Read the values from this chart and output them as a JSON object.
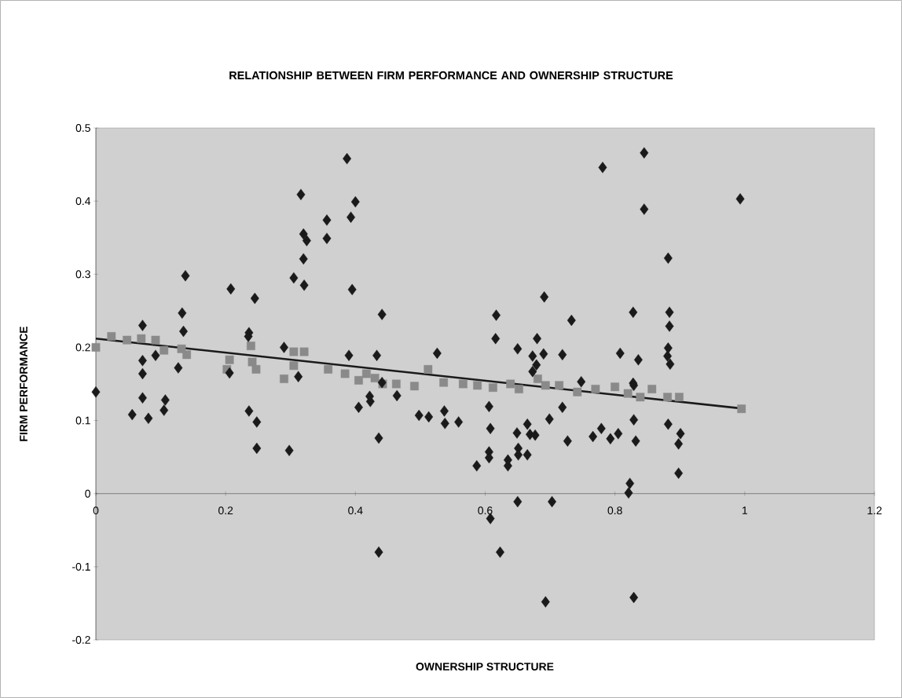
{
  "chart_data": {
    "type": "scatter",
    "title": "RELATIONSHIP BETWEEN FIRM PERFORMANCE AND OWNERSHIP STRUCTURE",
    "xlabel": "OWNERSHIP STRUCTURE",
    "ylabel": "FIRM PERFORMANCE",
    "xlim": [
      0,
      1.2
    ],
    "ylim": [
      -0.2,
      0.5
    ],
    "xticks": [
      0,
      0.2,
      0.4,
      0.6,
      0.8,
      1,
      1.2
    ],
    "yticks": [
      -0.2,
      -0.1,
      0,
      0.1,
      0.2,
      0.3,
      0.4,
      0.5
    ],
    "series": [
      {
        "marker": "square",
        "color": "#8a8a8a",
        "x": [
          0.0,
          0.024,
          0.048,
          0.07,
          0.092,
          0.105,
          0.132,
          0.14,
          0.206,
          0.202,
          0.239,
          0.241,
          0.247,
          0.29,
          0.305,
          0.321,
          0.305,
          0.358,
          0.384,
          0.405,
          0.417,
          0.43,
          0.442,
          0.463,
          0.491,
          0.512,
          0.536,
          0.566,
          0.588,
          0.612,
          0.639,
          0.652,
          0.681,
          0.693,
          0.714,
          0.742,
          0.77,
          0.8,
          0.82,
          0.839,
          0.857,
          0.881,
          0.899,
          0.995
        ],
        "values": [
          0.2,
          0.215,
          0.21,
          0.212,
          0.21,
          0.196,
          0.198,
          0.19,
          0.183,
          0.17,
          0.202,
          0.18,
          0.17,
          0.157,
          0.175,
          0.194,
          0.194,
          0.17,
          0.164,
          0.155,
          0.164,
          0.158,
          0.15,
          0.15,
          0.147,
          0.17,
          0.152,
          0.15,
          0.148,
          0.145,
          0.15,
          0.143,
          0.157,
          0.148,
          0.148,
          0.139,
          0.143,
          0.146,
          0.137,
          0.132,
          0.143,
          0.132,
          0.132,
          0.116
        ]
      },
      {
        "marker": "diamond",
        "color": "#1a1a1a",
        "x": [
          0.0,
          0.056,
          0.072,
          0.081,
          0.107,
          0.105,
          0.387,
          0.316,
          0.4,
          0.356,
          0.393,
          0.32,
          0.325,
          0.356,
          0.32,
          0.138,
          0.208,
          0.245,
          0.305,
          0.321,
          0.395,
          0.133,
          0.135,
          0.072,
          0.236,
          0.235,
          0.29,
          0.39,
          0.072,
          0.092,
          0.127,
          0.072,
          0.206,
          0.312,
          0.781,
          0.691,
          0.441,
          0.617,
          0.733,
          0.616,
          0.68,
          0.65,
          0.69,
          0.719,
          0.808,
          0.673,
          0.433,
          0.526,
          0.679,
          0.673,
          0.845,
          0.993,
          0.845,
          0.882,
          0.828,
          0.884,
          0.884,
          0.882,
          0.881,
          0.885,
          0.836,
          0.828,
          0.236,
          0.248,
          0.248,
          0.298,
          0.405,
          0.422,
          0.423,
          0.464,
          0.441,
          0.436,
          0.498,
          0.513,
          0.537,
          0.538,
          0.559,
          0.606,
          0.608,
          0.606,
          0.606,
          0.587,
          0.436,
          0.608,
          0.623,
          0.829,
          0.719,
          0.699,
          0.665,
          0.649,
          0.669,
          0.677,
          0.727,
          0.766,
          0.779,
          0.793,
          0.805,
          0.829,
          0.832,
          0.882,
          0.901,
          0.898,
          0.898,
          0.651,
          0.651,
          0.665,
          0.635,
          0.635,
          0.823,
          0.821,
          0.65,
          0.703,
          0.693,
          0.829,
          0.748
        ],
        "values": [
          0.139,
          0.108,
          0.131,
          0.103,
          0.128,
          0.114,
          0.458,
          0.409,
          0.399,
          0.374,
          0.378,
          0.355,
          0.346,
          0.349,
          0.321,
          0.298,
          0.28,
          0.267,
          0.295,
          0.285,
          0.279,
          0.247,
          0.222,
          0.23,
          0.22,
          0.215,
          0.2,
          0.189,
          0.182,
          0.189,
          0.172,
          0.164,
          0.165,
          0.16,
          0.446,
          0.269,
          0.245,
          0.244,
          0.237,
          0.212,
          0.212,
          0.198,
          0.191,
          0.19,
          0.192,
          0.188,
          0.189,
          0.192,
          0.176,
          0.167,
          0.466,
          0.403,
          0.389,
          0.322,
          0.248,
          0.248,
          0.229,
          0.199,
          0.188,
          0.177,
          0.183,
          0.151,
          0.113,
          0.098,
          0.062,
          0.059,
          0.118,
          0.133,
          0.126,
          0.134,
          0.152,
          0.076,
          0.107,
          0.105,
          0.113,
          0.096,
          0.098,
          0.119,
          0.089,
          0.057,
          0.049,
          0.038,
          -0.08,
          -0.034,
          -0.08,
          0.148,
          0.118,
          0.102,
          0.095,
          0.083,
          0.081,
          0.08,
          0.072,
          0.078,
          0.089,
          0.075,
          0.082,
          0.101,
          0.072,
          0.095,
          0.082,
          0.068,
          0.028,
          0.062,
          0.053,
          0.053,
          0.046,
          0.038,
          0.014,
          0.001,
          -0.011,
          -0.011,
          -0.148,
          -0.142,
          0.153
        ]
      },
      {
        "type": "line",
        "marker": "none",
        "color": "#1a1a1a",
        "x": [
          0,
          1
        ],
        "values": [
          0.212,
          0.116
        ]
      }
    ]
  }
}
